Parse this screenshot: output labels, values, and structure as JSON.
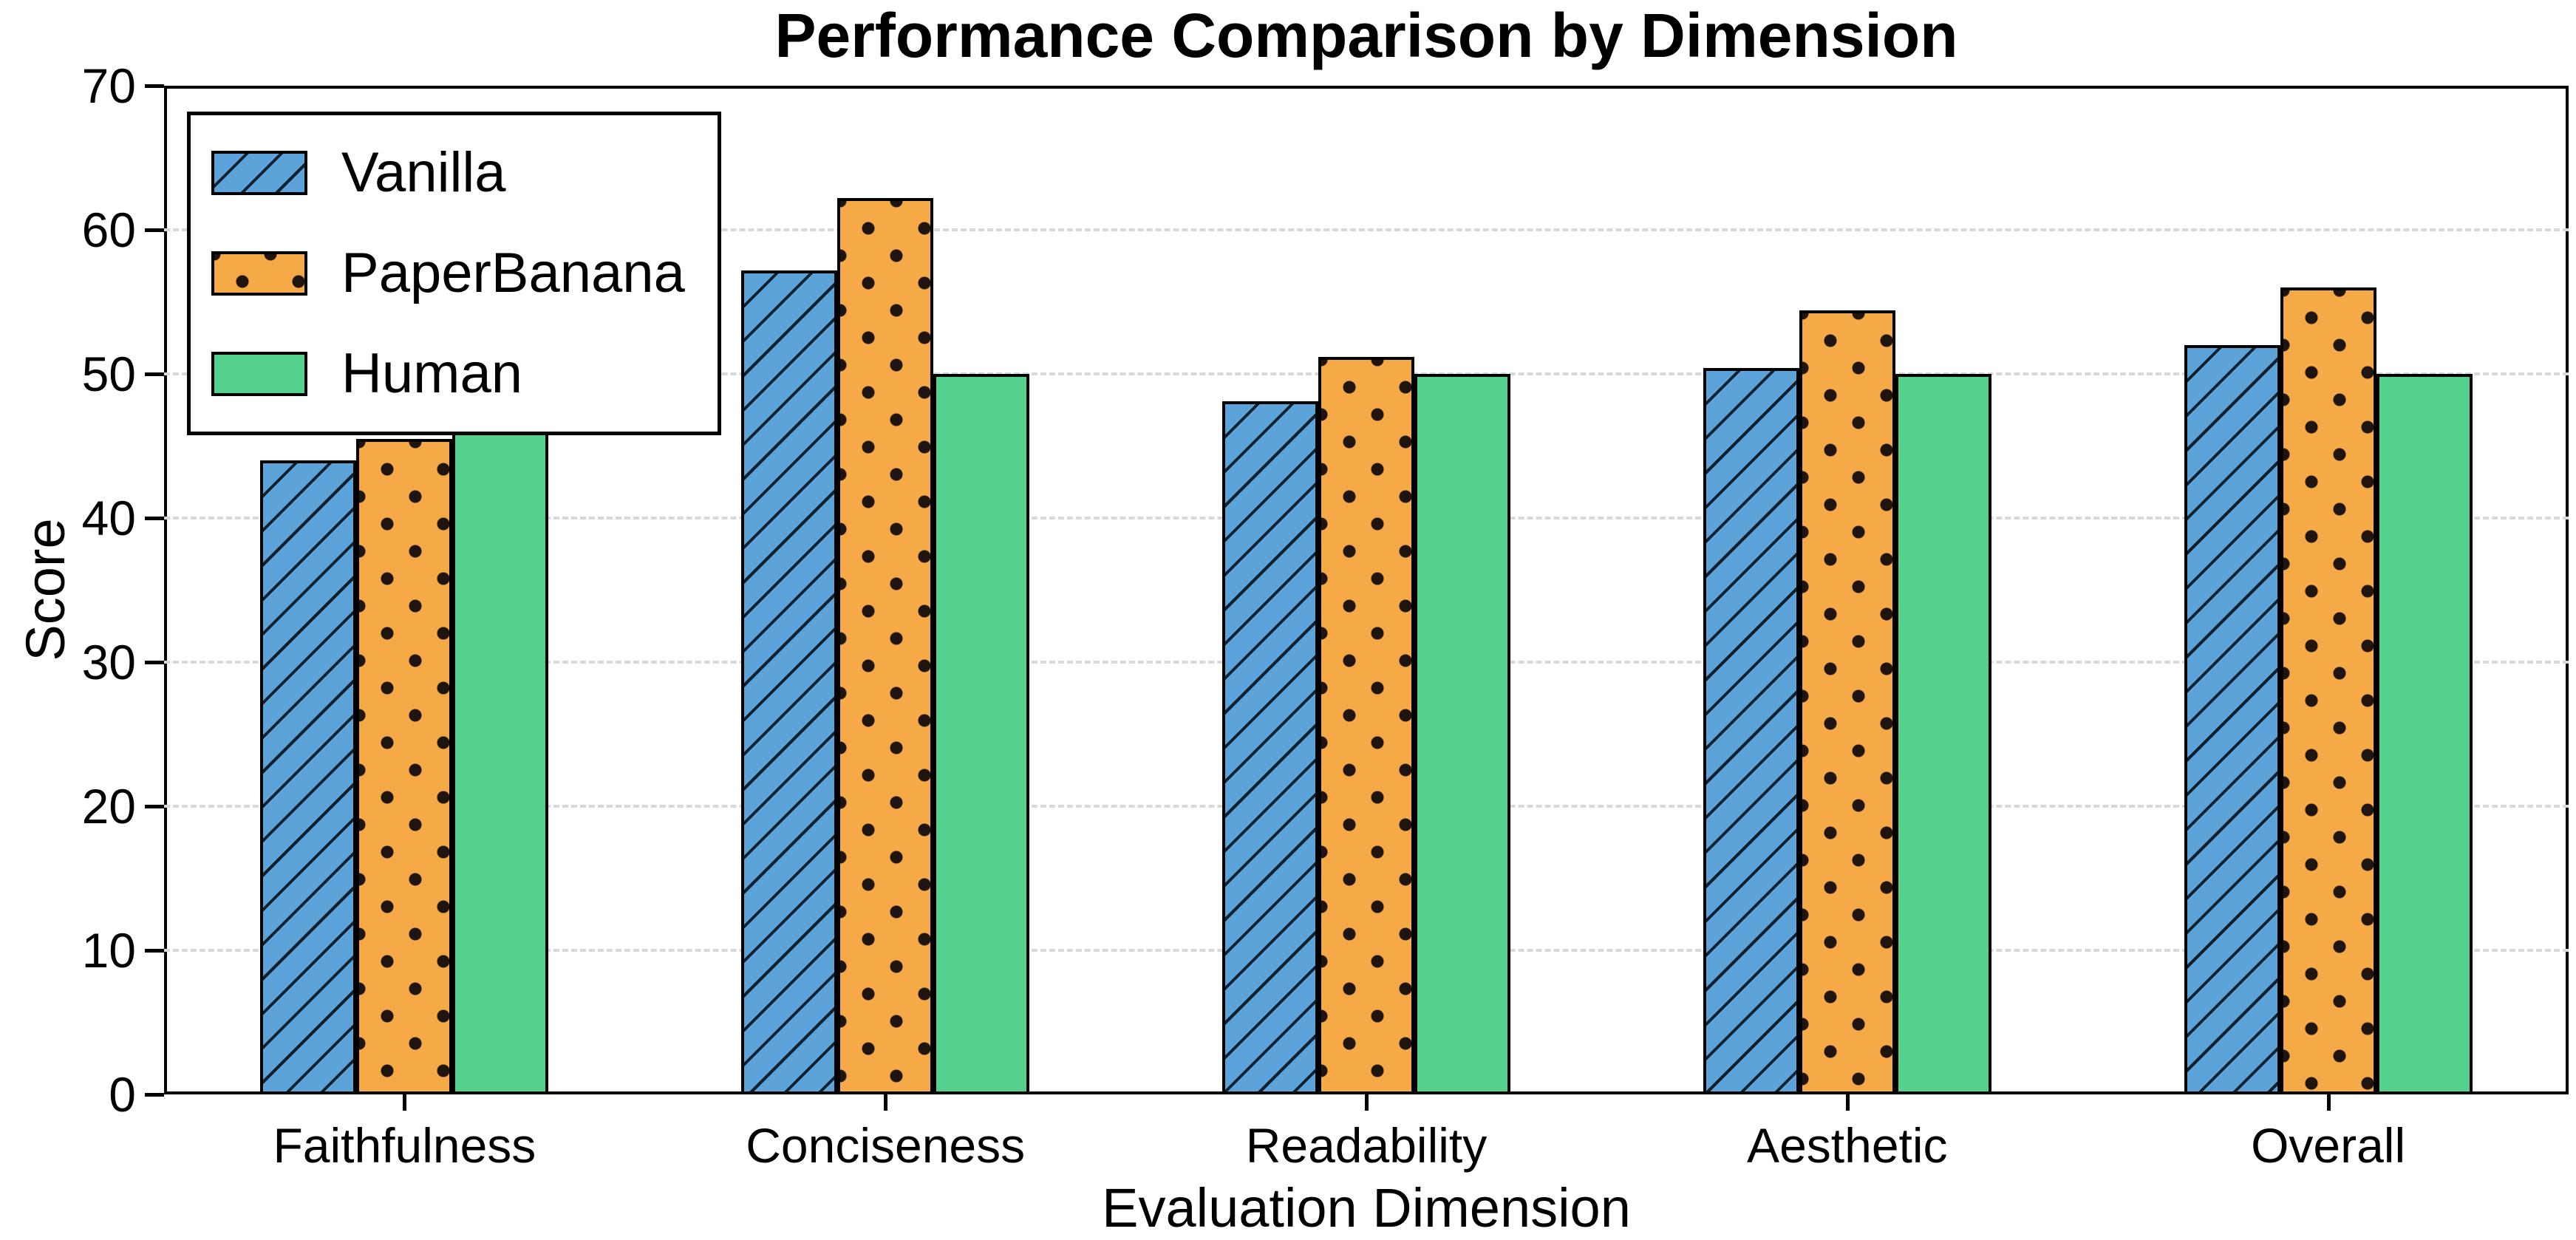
{
  "chart_data": {
    "type": "bar",
    "title": "Performance Comparison by Dimension",
    "xlabel": "Evaluation Dimension",
    "ylabel": "Score",
    "categories": [
      "Faithfulness",
      "Conciseness",
      "Readability",
      "Aesthetic",
      "Overall"
    ],
    "series": [
      {
        "name": "Vanilla",
        "values": [
          44.0,
          57.2,
          48.1,
          50.4,
          52.0
        ],
        "color": "#5BA3D9",
        "pattern": "diagonal-hatch"
      },
      {
        "name": "PaperBanana",
        "values": [
          45.5,
          62.2,
          51.2,
          54.4,
          56.0
        ],
        "color": "#F5A947",
        "pattern": "dots"
      },
      {
        "name": "Human",
        "values": [
          50.0,
          50.0,
          50.0,
          50.0,
          50.0
        ],
        "color": "#54D28D",
        "pattern": "solid"
      }
    ],
    "ylim": [
      0,
      70
    ],
    "yticks": [
      0,
      10,
      20,
      30,
      40,
      50,
      60,
      70
    ],
    "grid": "horizontal-dashed",
    "legend_position": "upper-left",
    "style": {
      "bar_edge_color": "#000000",
      "grid_color": "#d8d8d8",
      "hatch_color": "#10202e",
      "dot_color": "#1f150e",
      "text_color": "#000000",
      "background": "#ffffff"
    }
  }
}
